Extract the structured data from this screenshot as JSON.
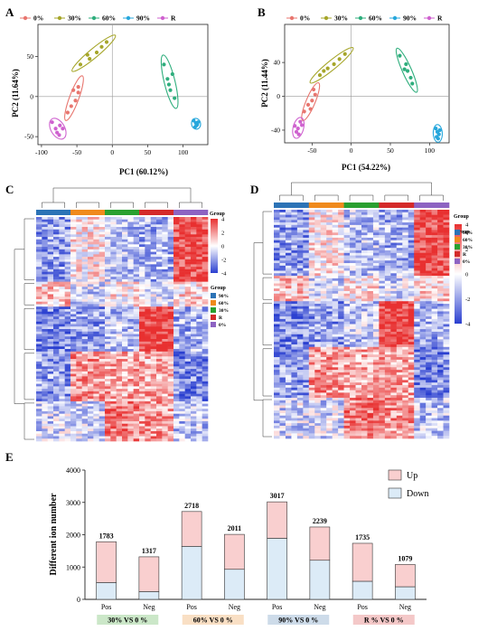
{
  "panels": {
    "a": {
      "letter": "A",
      "xlabel": "PC1 (60.12%)",
      "ylabel": "PC2 (11.64%)"
    },
    "b": {
      "letter": "B",
      "xlabel": "PC1 (54.22%)",
      "ylabel": "PC2 (11.44%)"
    },
    "c": {
      "letter": "C",
      "group_label": "Group"
    },
    "d": {
      "letter": "D",
      "group_label": "Group"
    },
    "e": {
      "letter": "E",
      "ylabel": "Different ion number"
    }
  },
  "legend_pca": [
    "0%",
    "30%",
    "60%",
    "90%",
    "R"
  ],
  "group_colors": {
    "0%": "#e8766f",
    "30%": "#a6a62a",
    "60%": "#2fae7d",
    "90%": "#27a7dc",
    "R": "#cf62cf"
  },
  "heatmap_colors": {
    "high": "#e83030",
    "mid": "#ffffff",
    "low": "#2a3fd0"
  },
  "heatmap_c": {
    "group_order": [
      "90%",
      "60%",
      "30%",
      "R",
      "0%"
    ],
    "legend_groups": [
      "90%",
      "60%",
      "30%",
      "R",
      "0%"
    ],
    "colorbar_ticks": [
      "4",
      "2",
      "0",
      "-2",
      "-4"
    ]
  },
  "heatmap_d": {
    "group_order": [
      "90%",
      "60%",
      "30%",
      "R",
      "0%"
    ],
    "legend_groups": [
      "90%",
      "60%",
      "30%",
      "R",
      "0%"
    ],
    "colorbar_ticks": [
      "4",
      "2",
      "0",
      "-2",
      "-4"
    ]
  },
  "heatmap_group_colors": {
    "90%": "#2c73b6",
    "60%": "#f08a1c",
    "30%": "#2aa030",
    "R": "#d42a2a",
    "0%": "#8d63c2"
  },
  "chart_data": [
    {
      "type": "scatter",
      "panel": "A",
      "xlabel": "PC1 (60.12%)",
      "ylabel": "PC2 (11.64%)",
      "xlim": [
        -105,
        135
      ],
      "ylim": [
        -60,
        90
      ],
      "xticks": [
        -100,
        -50,
        0,
        50,
        100
      ],
      "yticks": [
        -50,
        0,
        50
      ],
      "series": [
        {
          "name": "0%",
          "points": [
            [
              -63,
              -20
            ],
            [
              -58,
              -12
            ],
            [
              -52,
              -5
            ],
            [
              -48,
              5
            ],
            [
              -55,
              8
            ],
            [
              -48,
              12
            ]
          ]
        },
        {
          "name": "30%",
          "points": [
            [
              -45,
              40
            ],
            [
              -32,
              47
            ],
            [
              -22,
              55
            ],
            [
              -15,
              62
            ],
            [
              -8,
              68
            ],
            [
              -35,
              52
            ]
          ]
        },
        {
          "name": "60%",
          "points": [
            [
              73,
              40
            ],
            [
              78,
              22
            ],
            [
              82,
              8
            ],
            [
              85,
              28
            ],
            [
              80,
              15
            ],
            [
              88,
              -2
            ]
          ]
        },
        {
          "name": "90%",
          "points": [
            [
              115,
              -30
            ],
            [
              118,
              -33
            ],
            [
              120,
              -35
            ],
            [
              117,
              -38
            ],
            [
              121,
              -32
            ],
            [
              119,
              -36
            ]
          ]
        },
        {
          "name": "R",
          "points": [
            [
              -85,
              -32
            ],
            [
              -80,
              -40
            ],
            [
              -78,
              -45
            ],
            [
              -75,
              -48
            ],
            [
              -70,
              -40
            ],
            [
              -74,
              -36
            ]
          ]
        }
      ]
    },
    {
      "type": "scatter",
      "panel": "B",
      "xlabel": "PC1 (54.22%)",
      "ylabel": "PC2 (11.44%)",
      "xlim": [
        -85,
        125
      ],
      "ylim": [
        -55,
        85
      ],
      "xticks": [
        -50,
        0,
        50,
        100
      ],
      "yticks": [
        -40,
        0,
        40
      ],
      "series": [
        {
          "name": "0%",
          "points": [
            [
              -60,
              -18
            ],
            [
              -55,
              -10
            ],
            [
              -50,
              -5
            ],
            [
              -46,
              2
            ],
            [
              -52,
              -15
            ],
            [
              -48,
              8
            ]
          ]
        },
        {
          "name": "30%",
          "points": [
            [
              -40,
              25
            ],
            [
              -30,
              33
            ],
            [
              -22,
              38
            ],
            [
              -15,
              44
            ],
            [
              -8,
              50
            ],
            [
              -35,
              30
            ]
          ]
        },
        {
          "name": "60%",
          "points": [
            [
              62,
              48
            ],
            [
              70,
              38
            ],
            [
              72,
              30
            ],
            [
              76,
              22
            ],
            [
              78,
              15
            ],
            [
              68,
              32
            ]
          ]
        },
        {
          "name": "90%",
          "points": [
            [
              108,
              -38
            ],
            [
              110,
              -42
            ],
            [
              112,
              -45
            ],
            [
              109,
              -48
            ],
            [
              113,
              -40
            ],
            [
              111,
              -50
            ]
          ]
        },
        {
          "name": "R",
          "points": [
            [
              -72,
              -35
            ],
            [
              -70,
              -42
            ],
            [
              -68,
              -38
            ],
            [
              -65,
              -30
            ],
            [
              -67,
              -45
            ],
            [
              -63,
              -34
            ]
          ]
        }
      ]
    },
    {
      "type": "bar",
      "panel": "E",
      "stacked": true,
      "ylabel": "Different ion number",
      "ylim": [
        0,
        4000
      ],
      "yticks": [
        0,
        1000,
        2000,
        3000,
        4000
      ],
      "categories": [
        "Pos",
        "Neg",
        "Pos",
        "Neg",
        "Pos",
        "Neg",
        "Pos",
        "Neg"
      ],
      "totals": [
        1783,
        1317,
        2718,
        2011,
        3017,
        2239,
        1735,
        1079
      ],
      "series": [
        {
          "name": "Down",
          "color": "#dcebf7",
          "values": [
            520,
            240,
            1640,
            930,
            1890,
            1210,
            560,
            390
          ]
        },
        {
          "name": "Up",
          "color": "#f9cfcf",
          "values": [
            1263,
            1077,
            1078,
            1081,
            1127,
            1029,
            1175,
            689
          ]
        }
      ],
      "legend_order": [
        "Up",
        "Down"
      ],
      "legend_position": "top-right",
      "comparisons": [
        {
          "label": "30% VS 0 %",
          "color": "#cbe7c8"
        },
        {
          "label": "60% VS 0 %",
          "color": "#f9dfc4"
        },
        {
          "label": "90% VS 0 %",
          "color": "#cddbe9"
        },
        {
          "label": "R % VS 0 %",
          "color": "#f4c8c8"
        }
      ]
    }
  ]
}
